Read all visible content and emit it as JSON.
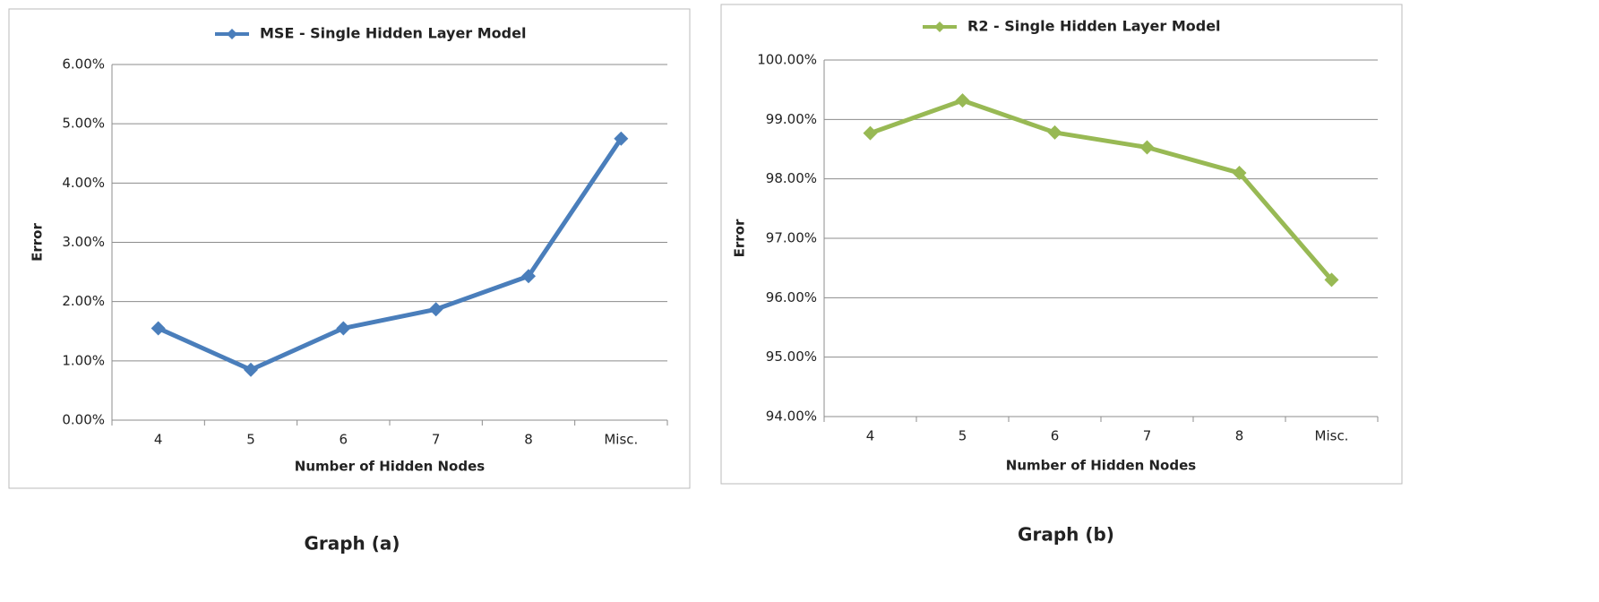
{
  "chart_data": [
    {
      "type": "line",
      "caption": "Graph (a)",
      "x_label": "Number of Hidden Nodes",
      "y_label": "Error",
      "categories": [
        "4",
        "5",
        "6",
        "7",
        "8",
        "Misc."
      ],
      "series": [
        {
          "name": "MSE - Single Hidden Layer Model",
          "color": "#4a7ebb",
          "values": [
            1.55,
            0.85,
            1.55,
            1.87,
            2.43,
            4.75
          ]
        }
      ],
      "ylim": [
        0,
        6
      ],
      "yticks": [
        {
          "value": 0,
          "label": "0.00%"
        },
        {
          "value": 1,
          "label": "1.00%"
        },
        {
          "value": 2,
          "label": "2.00%"
        },
        {
          "value": 3,
          "label": "3.00%"
        },
        {
          "value": 4,
          "label": "4.00%"
        },
        {
          "value": 5,
          "label": "5.00%"
        },
        {
          "value": 6,
          "label": "6.00%"
        }
      ],
      "grid": true
    },
    {
      "type": "line",
      "caption": "Graph (b)",
      "x_label": "Number of Hidden Nodes",
      "y_label": "Error",
      "categories": [
        "4",
        "5",
        "6",
        "7",
        "8",
        "Misc."
      ],
      "series": [
        {
          "name": "R2 - Single Hidden Layer Model",
          "color": "#98b954",
          "values": [
            98.77,
            99.32,
            98.78,
            98.53,
            98.1,
            96.3
          ]
        }
      ],
      "ylim": [
        94,
        100
      ],
      "yticks": [
        {
          "value": 94,
          "label": "94.00%"
        },
        {
          "value": 95,
          "label": "95.00%"
        },
        {
          "value": 96,
          "label": "96.00%"
        },
        {
          "value": 97,
          "label": "97.00%"
        },
        {
          "value": 98,
          "label": "98.00%"
        },
        {
          "value": 99,
          "label": "99.00%"
        },
        {
          "value": 100,
          "label": "100.00%"
        }
      ],
      "grid": true
    }
  ]
}
